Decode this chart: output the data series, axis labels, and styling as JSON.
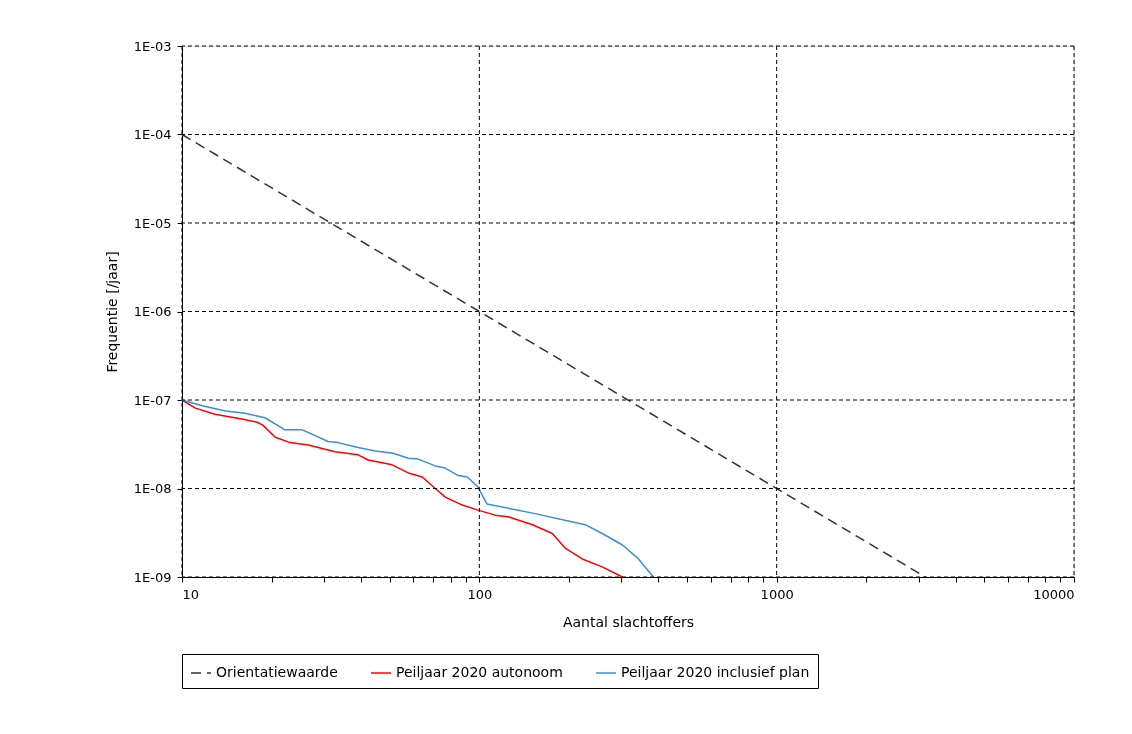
{
  "chart_data": {
    "type": "line",
    "xlabel": "Aantal slachtoffers",
    "ylabel": "Frequentie [/jaar]",
    "log": "xy",
    "grid": true,
    "legend": "bottom",
    "line_style": "solid",
    "marker": "none",
    "xlim": [
      10,
      10000
    ],
    "ylim": [
      1e-09,
      0.001
    ],
    "xticks": [
      10,
      {
        "value": 20,
        "label": null
      },
      {
        "value": 30,
        "label": null
      },
      {
        "value": 40,
        "label": null
      },
      {
        "value": 50,
        "label": null
      },
      {
        "value": 60,
        "label": null
      },
      {
        "value": 70,
        "label": null
      },
      {
        "value": 80,
        "label": null
      },
      {
        "value": 90,
        "label": null
      },
      100,
      {
        "value": 200,
        "label": null
      },
      {
        "value": 300,
        "label": null
      },
      {
        "value": 400,
        "label": null
      },
      {
        "value": 500,
        "label": null
      },
      {
        "value": 600,
        "label": null
      },
      {
        "value": 700,
        "label": null
      },
      {
        "value": 800,
        "label": null
      },
      {
        "value": 900,
        "label": null
      },
      1000,
      {
        "value": 2000,
        "label": null
      },
      {
        "value": 3000,
        "label": null
      },
      {
        "value": 4000,
        "label": null
      },
      {
        "value": 5000,
        "label": null
      },
      {
        "value": 6000,
        "label": null
      },
      {
        "value": 7000,
        "label": null
      },
      {
        "value": 8000,
        "label": null
      },
      {
        "value": 9000,
        "label": null
      },
      10000
    ],
    "yticks": [
      {
        "value": 1e-09,
        "label": "1E-09"
      },
      {
        "value": 1e-08,
        "label": "1E-08"
      },
      {
        "value": 1e-07,
        "label": "1E-07"
      },
      {
        "value": 1e-06,
        "label": "1E-06"
      },
      {
        "value": 1e-05,
        "label": "1E-05"
      },
      {
        "value": 0.0001,
        "label": "1E-04"
      },
      {
        "value": 0.001,
        "label": "1E-03"
      }
    ],
    "series": [
      {
        "name": "Orientatiewaarde",
        "color": "#333333",
        "line_style": "dashed",
        "x": [
          10,
          3162
        ],
        "values": [
          0.0001,
          1e-09
        ]
      },
      {
        "name": "Peiljaar 2020 autonoom",
        "color": "#ff0000",
        "x": [
          10,
          11.1,
          12.9,
          15.9,
          17.9,
          18.7,
          20.6,
          23.1,
          26.6,
          32.7,
          39.1,
          42.3,
          50.9,
          57.7,
          64.3,
          71.1,
          76.8,
          87.7,
          99,
          113,
          125,
          151,
          176,
          195,
          222,
          259,
          303
        ],
        "values": [
          1e-07,
          8.1e-08,
          6.9e-08,
          6.1e-08,
          5.6e-08,
          5.2e-08,
          3.8e-08,
          3.3e-08,
          3.1e-08,
          2.6e-08,
          2.4e-08,
          2.1e-08,
          1.85e-08,
          1.5e-08,
          1.35e-08,
          1e-08,
          8e-09,
          6.5e-09,
          5.7e-09,
          5e-09,
          4.8e-09,
          3.9e-09,
          3.1e-09,
          2.1e-09,
          1.6e-09,
          1.3e-09,
          1e-09
        ]
      },
      {
        "name": "Peiljaar 2020 inclusief plan",
        "color": "#3a8fd9",
        "x": [
          10,
          11.7,
          14.0,
          16.3,
          19.0,
          22.2,
          25.4,
          31.0,
          33.5,
          39.1,
          44.7,
          51.3,
          57.7,
          62.3,
          71.1,
          76.8,
          84.9,
          91.2,
          99,
          106,
          154,
          199,
          227,
          259,
          303,
          343,
          385
        ],
        "values": [
          1e-07,
          8.6e-08,
          7.5e-08,
          7.1e-08,
          6.3e-08,
          4.6e-08,
          4.6e-08,
          3.4e-08,
          3.3e-08,
          2.9e-08,
          2.65e-08,
          2.5e-08,
          2.2e-08,
          2.15e-08,
          1.8e-08,
          1.7e-08,
          1.4e-08,
          1.35e-08,
          1.04e-08,
          6.7e-09,
          5.2e-09,
          4.3e-09,
          3.9e-09,
          3.1e-09,
          2.3e-09,
          1.6e-09,
          1e-09
        ]
      }
    ]
  }
}
